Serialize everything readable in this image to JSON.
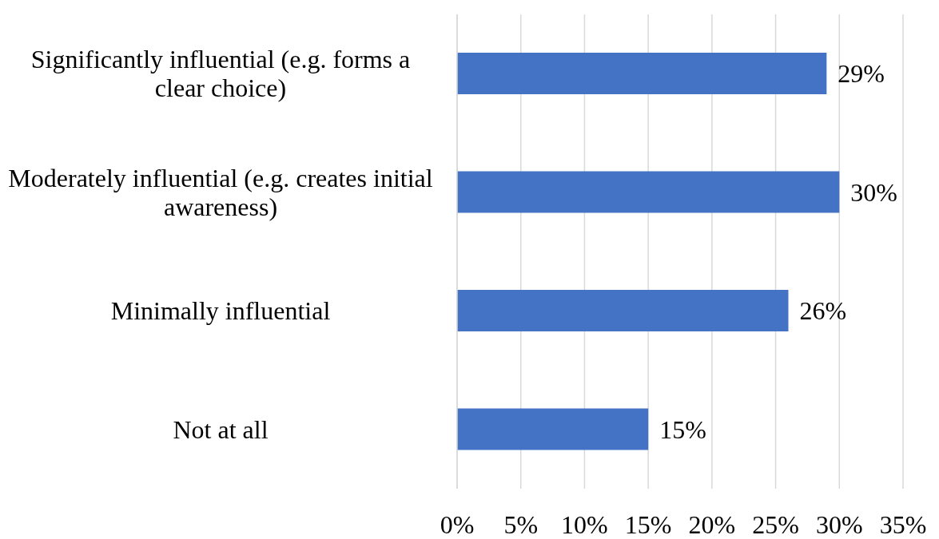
{
  "chart_data": {
    "type": "bar",
    "orientation": "horizontal",
    "categories": [
      "Significantly influential (e.g. forms a clear choice)",
      "Moderately influential (e.g. creates initial awareness)",
      "Minimally influential",
      "Not at all"
    ],
    "values": [
      29,
      30,
      26,
      15
    ],
    "value_labels": [
      "29%",
      "30%",
      "26%",
      "15%"
    ],
    "color": "#4472c4",
    "xlim": [
      0,
      35
    ],
    "xticks": [
      {
        "value": 0,
        "label": "0%"
      },
      {
        "value": 5,
        "label": "5%"
      },
      {
        "value": 10,
        "label": "10%"
      },
      {
        "value": 15,
        "label": "15%"
      },
      {
        "value": 20,
        "label": "20%"
      },
      {
        "value": 25,
        "label": "25%"
      },
      {
        "value": 30,
        "label": "30%"
      },
      {
        "value": 35,
        "label": "35%"
      }
    ],
    "grid": "x"
  }
}
